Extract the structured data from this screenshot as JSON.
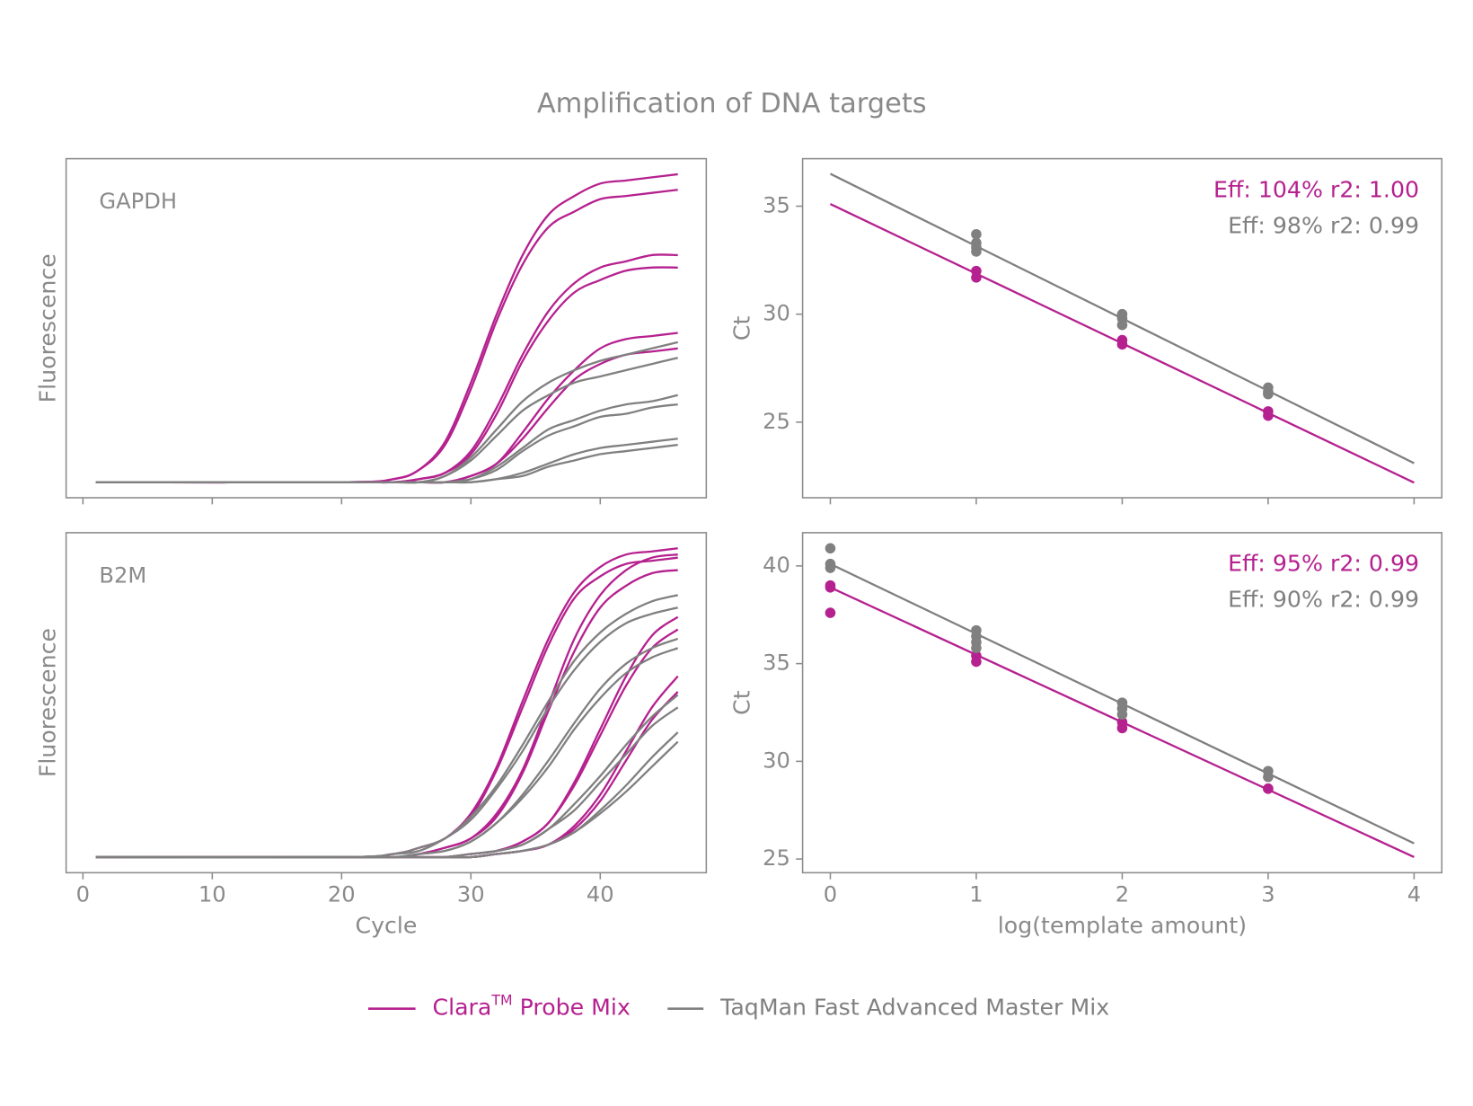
{
  "title": "Amplification of DNA targets",
  "legend": [
    {
      "name": "Clara",
      "superscript": "TM",
      "name_end": " Probe Mix",
      "color": "#b5218f"
    },
    {
      "name": "TaqMan Fast Advanced Master Mix",
      "color": "#808080"
    }
  ],
  "chart_data": [
    {
      "type": "line",
      "panel_label": "GAPDH",
      "y_label": "Fluorescence",
      "x": [
        1,
        20,
        24,
        26,
        28,
        30,
        32,
        34,
        36,
        38,
        40,
        42,
        44,
        46
      ],
      "xlim": [
        -1.3,
        48.2
      ],
      "xticks": [
        0,
        10,
        20,
        30,
        40
      ],
      "show_xtick_labels": false,
      "ylim": [
        -5,
        104
      ],
      "series": [
        {
          "color": "#b5218f",
          "values": [
            0,
            0,
            1,
            4,
            13,
            32,
            54,
            73,
            86,
            92,
            96,
            97,
            98,
            99
          ]
        },
        {
          "color": "#b5218f",
          "values": [
            0,
            0,
            1,
            4,
            12,
            30,
            52,
            70,
            82,
            87,
            91,
            92,
            93,
            94
          ]
        },
        {
          "color": "#b5218f",
          "values": [
            0,
            0,
            0,
            1,
            3,
            10,
            24,
            41,
            55,
            64,
            69,
            71,
            73,
            73
          ]
        },
        {
          "color": "#b5218f",
          "values": [
            0,
            0,
            0,
            1,
            3,
            9,
            22,
            39,
            52,
            61,
            65,
            68,
            69,
            69
          ]
        },
        {
          "color": "#b5218f",
          "values": [
            0,
            0,
            0,
            0,
            0,
            2,
            6,
            16,
            27,
            36,
            43,
            46,
            47,
            48
          ]
        },
        {
          "color": "#b5218f",
          "values": [
            0,
            0,
            0,
            0,
            0,
            2,
            6,
            14,
            24,
            33,
            38,
            41,
            42,
            43
          ]
        },
        {
          "color": "#808080",
          "values": [
            0,
            0,
            0,
            0,
            2,
            8,
            17,
            26,
            32,
            36,
            39,
            41,
            43,
            45
          ]
        },
        {
          "color": "#808080",
          "values": [
            0,
            0,
            0,
            0,
            2,
            7,
            15,
            23,
            28,
            32,
            34,
            36,
            38,
            40
          ]
        },
        {
          "color": "#808080",
          "values": [
            0,
            0,
            0,
            0,
            0,
            1,
            5,
            11,
            17,
            20,
            23,
            25,
            26,
            28
          ]
        },
        {
          "color": "#808080",
          "values": [
            0,
            0,
            0,
            0,
            0,
            1,
            4,
            10,
            15,
            18,
            21,
            22,
            24,
            25
          ]
        },
        {
          "color": "#808080",
          "values": [
            0,
            0,
            0,
            0,
            0,
            0,
            1,
            3,
            6,
            9,
            11,
            12,
            13,
            14
          ]
        },
        {
          "color": "#808080",
          "values": [
            0,
            0,
            0,
            0,
            0,
            0,
            1,
            2,
            5,
            7,
            9,
            10,
            11,
            12
          ]
        }
      ]
    },
    {
      "type": "scatter",
      "y_label": "Ct",
      "xlim": [
        -0.19,
        4.19
      ],
      "xticks": [
        0,
        1,
        2,
        3,
        4
      ],
      "show_xtick_labels": false,
      "ylim": [
        21.5,
        37.2
      ],
      "yticks": [
        25,
        30,
        35
      ],
      "series": [
        {
          "color": "#b5218f",
          "x": [
            1,
            1,
            2,
            2,
            3,
            3
          ],
          "values": [
            32.0,
            31.7,
            28.8,
            28.6,
            25.5,
            25.3
          ],
          "fit_x": [
            0,
            4
          ],
          "fit_values": [
            35.1,
            22.2
          ],
          "annotation": "Eff: 104% r2: 1.00"
        },
        {
          "color": "#808080",
          "x": [
            1,
            1,
            1,
            1,
            2,
            2,
            2,
            3,
            3,
            3
          ],
          "values": [
            33.7,
            33.3,
            33.1,
            32.9,
            30.0,
            29.8,
            29.5,
            26.6,
            26.4,
            26.3
          ],
          "fit_x": [
            0,
            4
          ],
          "fit_values": [
            36.5,
            23.1
          ],
          "annotation": "Eff: 98% r2: 0.99"
        }
      ]
    },
    {
      "type": "line",
      "panel_label": "B2M",
      "y_label": "Fluorescence",
      "x_label": "Cycle",
      "x": [
        1,
        20,
        24,
        26,
        28,
        30,
        32,
        34,
        36,
        38,
        40,
        42,
        44,
        46
      ],
      "xlim": [
        -1.3,
        48.2
      ],
      "xticks": [
        0,
        10,
        20,
        30,
        40
      ],
      "ylim": [
        -5,
        104
      ],
      "series": [
        {
          "color": "#b5218f",
          "values": [
            0,
            0,
            1,
            3,
            6,
            14,
            29,
            50,
            70,
            85,
            93,
            97,
            98,
            99
          ]
        },
        {
          "color": "#b5218f",
          "values": [
            0,
            0,
            1,
            3,
            6,
            13,
            28,
            48,
            68,
            83,
            90,
            94,
            95,
            96
          ]
        },
        {
          "color": "#b5218f",
          "values": [
            0,
            0,
            0,
            1,
            3,
            6,
            14,
            28,
            49,
            70,
            84,
            92,
            96,
            97
          ]
        },
        {
          "color": "#b5218f",
          "values": [
            0,
            0,
            0,
            1,
            3,
            6,
            13,
            27,
            47,
            66,
            80,
            87,
            91,
            92
          ]
        },
        {
          "color": "#b5218f",
          "values": [
            0,
            0,
            0,
            0,
            0,
            1,
            2,
            5,
            11,
            24,
            41,
            58,
            71,
            77
          ]
        },
        {
          "color": "#b5218f",
          "values": [
            0,
            0,
            0,
            0,
            0,
            1,
            2,
            5,
            11,
            23,
            39,
            55,
            67,
            73
          ]
        },
        {
          "color": "#b5218f",
          "values": [
            0,
            0,
            0,
            0,
            0,
            0,
            1,
            2,
            4,
            10,
            20,
            34,
            48,
            58
          ]
        },
        {
          "color": "#b5218f",
          "values": [
            0,
            0,
            0,
            0,
            0,
            0,
            1,
            2,
            4,
            9,
            18,
            31,
            44,
            53
          ]
        },
        {
          "color": "#808080",
          "values": [
            0,
            0,
            1,
            3,
            6,
            13,
            23,
            36,
            50,
            63,
            72,
            78,
            82,
            84
          ]
        },
        {
          "color": "#808080",
          "values": [
            0,
            0,
            1,
            2,
            6,
            12,
            22,
            34,
            48,
            60,
            69,
            75,
            78,
            80
          ]
        },
        {
          "color": "#808080",
          "values": [
            0,
            0,
            0,
            1,
            2,
            5,
            11,
            20,
            31,
            43,
            54,
            62,
            67,
            70
          ]
        },
        {
          "color": "#808080",
          "values": [
            0,
            0,
            0,
            1,
            2,
            5,
            11,
            19,
            29,
            41,
            51,
            59,
            64,
            67
          ]
        },
        {
          "color": "#808080",
          "values": [
            0,
            0,
            0,
            0,
            0,
            1,
            2,
            4,
            9,
            17,
            26,
            36,
            45,
            52
          ]
        },
        {
          "color": "#808080",
          "values": [
            0,
            0,
            0,
            0,
            0,
            1,
            2,
            4,
            9,
            15,
            24,
            33,
            42,
            48
          ]
        },
        {
          "color": "#808080",
          "values": [
            0,
            0,
            0,
            0,
            0,
            0,
            1,
            2,
            4,
            8,
            15,
            23,
            32,
            40
          ]
        },
        {
          "color": "#808080",
          "values": [
            0,
            0,
            0,
            0,
            0,
            0,
            1,
            2,
            4,
            8,
            14,
            21,
            29,
            37
          ]
        }
      ]
    },
    {
      "type": "scatter",
      "y_label": "Ct",
      "x_label": "log(template amount)",
      "xlim": [
        -0.19,
        4.19
      ],
      "xticks": [
        0,
        1,
        2,
        3,
        4
      ],
      "ylim": [
        24.3,
        41.7
      ],
      "yticks": [
        25,
        30,
        35,
        40
      ],
      "series": [
        {
          "color": "#b5218f",
          "x": [
            0,
            0,
            0,
            1,
            1,
            2,
            2,
            3,
            3
          ],
          "values": [
            39.0,
            38.9,
            37.6,
            35.4,
            35.1,
            32.0,
            31.7,
            28.6,
            28.6
          ],
          "fit_x": [
            0,
            4
          ],
          "fit_values": [
            38.9,
            25.1
          ],
          "annotation": "Eff: 95% r2: 0.99"
        },
        {
          "color": "#808080",
          "x": [
            0,
            0,
            0,
            1,
            1,
            1,
            1,
            2,
            2,
            2,
            3,
            3
          ],
          "values": [
            40.9,
            40.1,
            39.9,
            36.7,
            36.4,
            36.1,
            35.8,
            33.0,
            32.7,
            32.4,
            29.5,
            29.2
          ],
          "fit_x": [
            0,
            4
          ],
          "fit_values": [
            40.1,
            25.8
          ],
          "annotation": "Eff: 90% r2: 0.99"
        }
      ]
    }
  ]
}
